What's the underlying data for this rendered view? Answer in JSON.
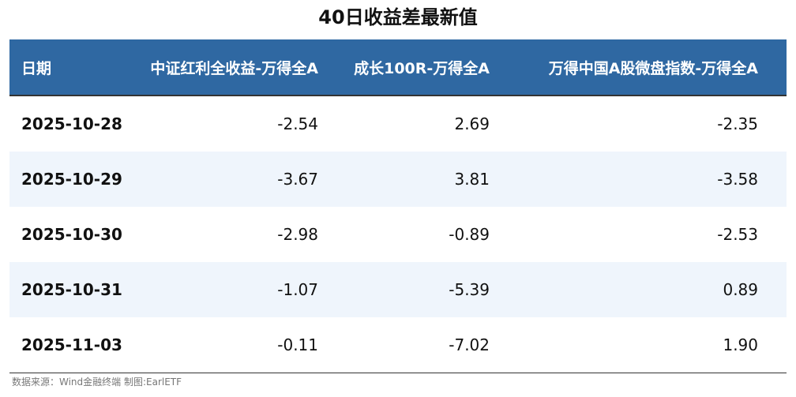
{
  "title": "40日收益差最新值",
  "table": {
    "header": [
      "日期",
      "中证红利全收益-万得全A",
      "成长100R-万得全A",
      "万得中国A股微盘指数-万得全A"
    ],
    "rows": [
      [
        "2025-10-28",
        "-2.54",
        "2.69",
        "-2.35"
      ],
      [
        "2025-10-29",
        "-3.67",
        "3.81",
        "-3.58"
      ],
      [
        "2025-10-30",
        "-2.98",
        "-0.89",
        "-2.53"
      ],
      [
        "2025-10-31",
        "-1.07",
        "-5.39",
        "0.89"
      ],
      [
        "2025-11-03",
        "-0.11",
        "-7.02",
        "1.90"
      ]
    ]
  },
  "source": "数据来源：Wind金融终端 制图:EarlETF"
}
